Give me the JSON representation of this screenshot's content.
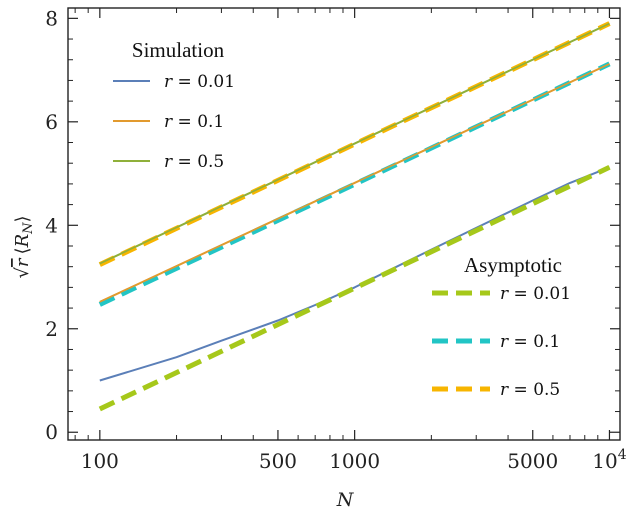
{
  "chart_data": {
    "type": "line",
    "xlabel": "N",
    "ylabel": "√r ⟨R_N⟩",
    "x_scale": "log",
    "xlim": [
      75,
      11000
    ],
    "ylim": [
      -0.15,
      8.2
    ],
    "x_ticks": [
      {
        "value": 100,
        "label": "100"
      },
      {
        "value": 500,
        "label": "500"
      },
      {
        "value": 1000,
        "label": "1000"
      },
      {
        "value": 5000,
        "label": "5000"
      },
      {
        "value": 10000,
        "label": "10^4"
      }
    ],
    "y_ticks": [
      {
        "value": 0,
        "label": "0"
      },
      {
        "value": 2,
        "label": "2"
      },
      {
        "value": 4,
        "label": "4"
      },
      {
        "value": 6,
        "label": "6"
      },
      {
        "value": 8,
        "label": "8"
      }
    ],
    "grid": false,
    "legends": [
      {
        "title": "Simulation",
        "placement": "top-left",
        "entries": [
          {
            "label": "r = 0.01",
            "color": "#5b7fb8",
            "style": "solid"
          },
          {
            "label": "r = 0.1",
            "color": "#e29a2e",
            "style": "solid"
          },
          {
            "label": "r = 0.5",
            "color": "#8fb03a",
            "style": "solid"
          }
        ]
      },
      {
        "title": "Asymptotic",
        "placement": "bottom-right",
        "entries": [
          {
            "label": "r = 0.01",
            "color": "#a6c81a",
            "style": "dashed"
          },
          {
            "label": "r = 0.1",
            "color": "#22c5c5",
            "style": "dashed"
          },
          {
            "label": "r = 0.5",
            "color": "#f7b500",
            "style": "dashed"
          }
        ]
      }
    ],
    "series": [
      {
        "group": "Simulation",
        "color": "#5b7fb8",
        "style": "solid",
        "x": [
          100,
          200,
          300,
          500,
          700,
          1000,
          2000,
          3000,
          5000,
          7000,
          10000
        ],
        "y": [
          1.0,
          1.45,
          1.77,
          2.16,
          2.46,
          2.8,
          3.53,
          3.95,
          4.48,
          4.82,
          5.12
        ]
      },
      {
        "group": "Simulation",
        "color": "#e29a2e",
        "style": "solid",
        "x": [
          100,
          10000
        ],
        "y": [
          2.52,
          7.12
        ]
      },
      {
        "group": "Simulation",
        "color": "#8fb03a",
        "style": "solid",
        "x": [
          100,
          10000
        ],
        "y": [
          3.26,
          7.9
        ]
      },
      {
        "group": "Asymptotic",
        "color": "#a6c81a",
        "style": "dashed",
        "x": [
          100,
          10000
        ],
        "y": [
          0.45,
          5.12
        ]
      },
      {
        "group": "Asymptotic",
        "color": "#22c5c5",
        "style": "dashed",
        "x": [
          100,
          10000
        ],
        "y": [
          2.47,
          7.12
        ]
      },
      {
        "group": "Asymptotic",
        "color": "#f7b500",
        "style": "dashed",
        "x": [
          100,
          10000
        ],
        "y": [
          3.24,
          7.9
        ]
      }
    ]
  }
}
